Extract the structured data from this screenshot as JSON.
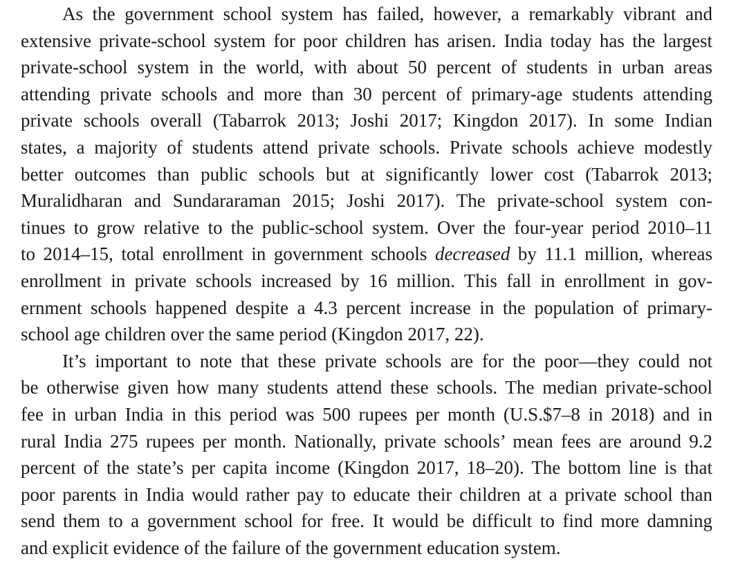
{
  "paragraphs": [
    {
      "lines": [
        [
          "As the government school system has failed, however, a remarkably vibrant and"
        ],
        [
          "extensive private-school system for poor children has arisen. India today has the largest"
        ],
        [
          "private-school system in the world, with about 50 percent of students in urban areas"
        ],
        [
          "attending private schools and more than 30 percent of primary-age students attending"
        ],
        [
          "private schools overall (Tabarrok 2013; Joshi 2017; Kingdon 2017). In some Indian"
        ],
        [
          "states, a majority of students attend private schools. Private schools achieve modestly"
        ],
        [
          "better outcomes than public schools but at significantly lower cost (Tabarrok 2013;"
        ],
        [
          "Muralidharan and Sundararaman 2015; Joshi 2017). The private-school system con-"
        ],
        [
          "tinues to grow relative to the public-school system. Over the four-year period 2010–11"
        ],
        [
          "to 2014–15, total enrollment in government schools ",
          "decreased",
          " by 11.1 million, whereas"
        ],
        [
          "enrollment in private schools increased by 16 million. This fall in enrollment in gov-"
        ],
        [
          "ernment schools happened despite a 4.3 percent increase in the population of primary-"
        ],
        [
          "school age children over the same period (Kingdon 2017, 22)."
        ]
      ]
    },
    {
      "lines": [
        [
          "It’s important to note that these private schools are for the poor—they could not"
        ],
        [
          "be otherwise given how many students attend these schools. The median private-school"
        ],
        [
          "fee in urban India in this period was 500 rupees per month (U.S.$7–8 in 2018) and in"
        ],
        [
          "rural India 275 rupees per month. Nationally, private schools’ mean fees are around 9.2"
        ],
        [
          "percent of the state’s per capita income (Kingdon 2017, 18–20). The bottom line is that"
        ],
        [
          "poor parents in India would rather pay to educate their children at a private school than"
        ],
        [
          "send them to a government school for free. It would be difficult to find more damning"
        ],
        [
          "and explicit evidence of the failure of the government education system."
        ]
      ]
    }
  ]
}
